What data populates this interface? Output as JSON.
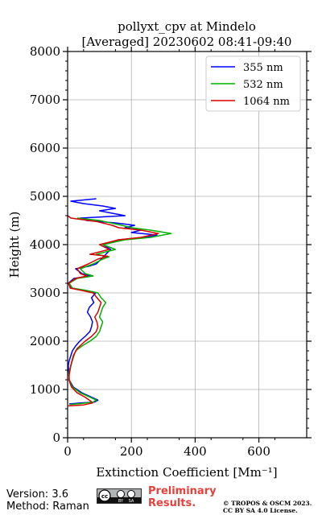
{
  "chart_data": {
    "type": "line",
    "title": "pollyxt_cpv at Mindelo",
    "subtitle": "[Averaged] 20230602 08:41-09:40",
    "xlabel": "Extinction Coefficient [Mm⁻¹]",
    "ylabel": "Height (m)",
    "xlim": [
      0,
      750
    ],
    "ylim": [
      0,
      8000
    ],
    "xticks": [
      "0",
      "200",
      "400",
      "600"
    ],
    "xtick_values": [
      0,
      200,
      400,
      600
    ],
    "yticks": [
      "0",
      "1000",
      "2000",
      "3000",
      "4000",
      "5000",
      "6000",
      "7000",
      "8000"
    ],
    "ytick_values": [
      0,
      1000,
      2000,
      3000,
      4000,
      5000,
      6000,
      7000,
      8000
    ],
    "grid": true,
    "legend_position": "top-right",
    "series": [
      {
        "name": "355 nm",
        "color": "#0000ff",
        "points": [
          [
            5,
            700
          ],
          [
            40,
            720
          ],
          [
            85,
            740
          ],
          [
            95,
            780
          ],
          [
            75,
            840
          ],
          [
            45,
            930
          ],
          [
            18,
            1050
          ],
          [
            5,
            1200
          ],
          [
            3,
            1400
          ],
          [
            2,
            1500
          ],
          [
            5,
            1600
          ],
          [
            10,
            1700
          ],
          [
            15,
            1800
          ],
          [
            25,
            1900
          ],
          [
            38,
            2000
          ],
          [
            55,
            2100
          ],
          [
            70,
            2200
          ],
          [
            75,
            2300
          ],
          [
            78,
            2400
          ],
          [
            72,
            2500
          ],
          [
            62,
            2600
          ],
          [
            68,
            2700
          ],
          [
            82,
            2800
          ],
          [
            75,
            2900
          ],
          [
            88,
            3000
          ],
          [
            50,
            3050
          ],
          [
            10,
            3100
          ],
          [
            2,
            3200
          ],
          [
            20,
            3300
          ],
          [
            70,
            3350
          ],
          [
            45,
            3400
          ],
          [
            25,
            3500
          ],
          [
            65,
            3550
          ],
          [
            90,
            3600
          ],
          [
            105,
            3700
          ],
          [
            120,
            3800
          ],
          [
            135,
            3900
          ],
          [
            110,
            4000
          ],
          [
            160,
            4100
          ],
          [
            240,
            4150
          ],
          [
            280,
            4200
          ],
          [
            200,
            4250
          ],
          [
            230,
            4300
          ],
          [
            180,
            4350
          ],
          [
            210,
            4400
          ],
          [
            150,
            4450
          ],
          [
            60,
            4500
          ],
          [
            40,
            4550
          ],
          [
            180,
            4600
          ],
          [
            140,
            4650
          ],
          [
            100,
            4700
          ],
          [
            150,
            4750
          ],
          [
            110,
            4800
          ],
          [
            50,
            4850
          ],
          [
            10,
            4900
          ],
          [
            90,
            4950
          ]
        ]
      },
      {
        "name": "532 nm",
        "color": "#00b200",
        "points": [
          [
            8,
            690
          ],
          [
            45,
            710
          ],
          [
            80,
            740
          ],
          [
            90,
            780
          ],
          [
            70,
            840
          ],
          [
            40,
            930
          ],
          [
            15,
            1050
          ],
          [
            5,
            1200
          ],
          [
            4,
            1300
          ],
          [
            6,
            1400
          ],
          [
            15,
            1600
          ],
          [
            25,
            1800
          ],
          [
            45,
            1900
          ],
          [
            70,
            2000
          ],
          [
            90,
            2100
          ],
          [
            100,
            2200
          ],
          [
            105,
            2300
          ],
          [
            110,
            2400
          ],
          [
            100,
            2500
          ],
          [
            105,
            2600
          ],
          [
            110,
            2700
          ],
          [
            120,
            2800
          ],
          [
            105,
            2900
          ],
          [
            95,
            3000
          ],
          [
            60,
            3050
          ],
          [
            15,
            3100
          ],
          [
            5,
            3200
          ],
          [
            30,
            3300
          ],
          [
            80,
            3350
          ],
          [
            55,
            3400
          ],
          [
            40,
            3500
          ],
          [
            80,
            3600
          ],
          [
            110,
            3700
          ],
          [
            130,
            3750
          ],
          [
            90,
            3800
          ],
          [
            150,
            3900
          ],
          [
            110,
            4000
          ],
          [
            180,
            4100
          ],
          [
            260,
            4150
          ],
          [
            325,
            4230
          ],
          [
            260,
            4300
          ],
          [
            200,
            4350
          ],
          [
            170,
            4400
          ],
          [
            100,
            4500
          ],
          [
            30,
            4550
          ]
        ]
      },
      {
        "name": "1064 nm",
        "color": "#dd0000",
        "points": [
          [
            2,
            660
          ],
          [
            50,
            680
          ],
          [
            78,
            720
          ],
          [
            72,
            760
          ],
          [
            55,
            840
          ],
          [
            30,
            930
          ],
          [
            12,
            1050
          ],
          [
            4,
            1200
          ],
          [
            5,
            1300
          ],
          [
            10,
            1500
          ],
          [
            18,
            1700
          ],
          [
            30,
            1850
          ],
          [
            55,
            2000
          ],
          [
            75,
            2100
          ],
          [
            90,
            2200
          ],
          [
            95,
            2300
          ],
          [
            92,
            2400
          ],
          [
            85,
            2500
          ],
          [
            95,
            2600
          ],
          [
            100,
            2700
          ],
          [
            105,
            2800
          ],
          [
            92,
            2900
          ],
          [
            80,
            3000
          ],
          [
            45,
            3050
          ],
          [
            8,
            3100
          ],
          [
            3,
            3200
          ],
          [
            25,
            3300
          ],
          [
            60,
            3350
          ],
          [
            40,
            3400
          ],
          [
            30,
            3500
          ],
          [
            65,
            3600
          ],
          [
            95,
            3700
          ],
          [
            125,
            3760
          ],
          [
            70,
            3800
          ],
          [
            130,
            3900
          ],
          [
            100,
            4000
          ],
          [
            160,
            4100
          ],
          [
            230,
            4150
          ],
          [
            285,
            4230
          ],
          [
            230,
            4300
          ],
          [
            160,
            4350
          ],
          [
            140,
            4400
          ],
          [
            90,
            4480
          ],
          [
            10,
            4550
          ],
          [
            0,
            4600
          ]
        ]
      }
    ]
  },
  "footer": {
    "version": "Version: 3.6",
    "method": "Method: Raman",
    "preliminary_line1": "Preliminary",
    "preliminary_line2": "Results.",
    "copyright_line1": "© TROPOS & OSCM 2023.",
    "copyright_line2": "CC BY SA 4.0 License.",
    "badge_icon": "cc-by-sa-icon"
  }
}
